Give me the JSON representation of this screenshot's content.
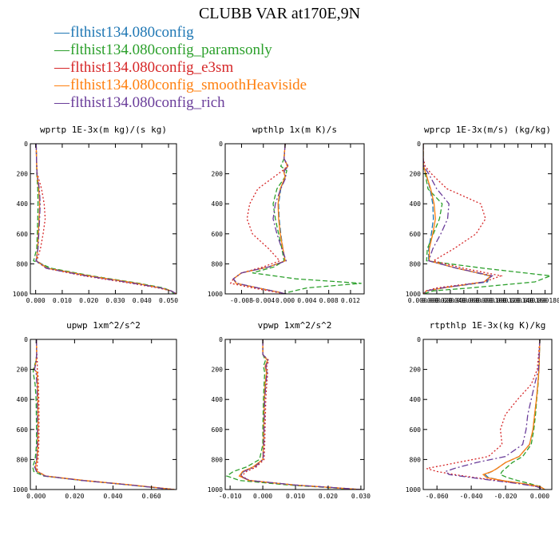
{
  "title": "CLUBB VAR at170E,9N",
  "series_colors": [
    "#1f77b4",
    "#2ca02c",
    "#d62728",
    "#ff7f0e",
    "#6a3d9a"
  ],
  "legend": [
    {
      "name": "flthist134.080config",
      "color": "#1f77b4"
    },
    {
      "name": "flthist134.080config_paramsonly",
      "color": "#2ca02c"
    },
    {
      "name": "flthist134.080config_e3sm",
      "color": "#d62728"
    },
    {
      "name": "flthist134.080config_smoothHeaviside",
      "color": "#ff7f0e"
    },
    {
      "name": "flthist134.080config_rich",
      "color": "#6a3d9a"
    }
  ],
  "chart_data": [
    {
      "type": "line",
      "title": "wprtp  1E-3x(m kg)/(s kg)",
      "xlim": [
        -0.002,
        0.053
      ],
      "ylim": [
        0,
        1000
      ],
      "yinverted": true,
      "xticks": [
        0.0,
        0.01,
        0.02,
        0.03,
        0.04,
        0.05
      ],
      "xtick_labels": [
        "0.000",
        "0.010",
        "0.020",
        "0.030",
        "0.040",
        "0.050"
      ],
      "yticks": [
        0,
        200,
        400,
        600,
        800,
        1000
      ],
      "ytick_labels": [
        "0",
        "200",
        "400",
        "600",
        "800",
        "1000"
      ],
      "y": [
        0,
        100,
        200,
        300,
        400,
        500,
        600,
        700,
        780,
        830,
        880,
        930,
        960,
        980,
        1000
      ],
      "series": [
        {
          "name": "flthist134.080config",
          "x": [
            0.0002,
            0.0003,
            0.0005,
            0.0012,
            0.0015,
            0.0013,
            0.001,
            0.0008,
            0.0003,
            0.005,
            0.02,
            0.038,
            0.047,
            0.051,
            0.053
          ]
        },
        {
          "name": "flthist134.080config_paramsonly",
          "x": [
            0.0002,
            0.0003,
            0.0004,
            0.0008,
            0.0009,
            0.0008,
            0.0006,
            0.0004,
            -0.0008,
            0.006,
            0.021,
            0.039,
            0.048,
            0.051,
            0.052
          ]
        },
        {
          "name": "flthist134.080config_e3sm",
          "x": [
            0.0002,
            0.0003,
            0.0006,
            0.0022,
            0.0032,
            0.0036,
            0.0028,
            0.0018,
            0.0004,
            0.004,
            0.018,
            0.036,
            0.046,
            0.051,
            0.053
          ]
        },
        {
          "name": "flthist134.080config_smoothHeaviside",
          "x": [
            0.0002,
            0.0003,
            0.0005,
            0.0012,
            0.0015,
            0.0013,
            0.001,
            0.0008,
            0.0002,
            0.0045,
            0.02,
            0.038,
            0.047,
            0.051,
            0.053
          ]
        },
        {
          "name": "flthist134.080config_rich",
          "x": [
            0.0002,
            0.0003,
            0.0005,
            0.0014,
            0.0017,
            0.0015,
            0.0012,
            0.0009,
            0.0001,
            0.004,
            0.019,
            0.037,
            0.047,
            0.051,
            0.053
          ]
        }
      ]
    },
    {
      "type": "line",
      "title": "wpthlp  1x(m K)/s",
      "xlim": [
        -0.011,
        0.0145
      ],
      "ylim": [
        0,
        1000
      ],
      "yinverted": true,
      "xticks": [
        -0.008,
        -0.004,
        0.0,
        0.004,
        0.008,
        0.012
      ],
      "xtick_labels": [
        "-0.008",
        "-0.004",
        "0.000",
        "0.004",
        "0.008",
        "0.012"
      ],
      "yticks": [
        0,
        200,
        400,
        600,
        800,
        1000
      ],
      "ytick_labels": [
        "0",
        "200",
        "400",
        "600",
        "800",
        "1000"
      ],
      "y": [
        0,
        100,
        150,
        180,
        220,
        300,
        400,
        500,
        600,
        700,
        780,
        820,
        860,
        900,
        930,
        960,
        990,
        1000
      ],
      "series": [
        {
          "name": "flthist134.080config",
          "x": [
            0.0,
            -0.0002,
            0.0005,
            -0.0003,
            0.0,
            -0.0008,
            -0.0012,
            -0.0011,
            -0.0008,
            -0.0004,
            0.0,
            -0.003,
            -0.008,
            -0.0095,
            -0.009,
            -0.005,
            -0.001,
            0.0
          ]
        },
        {
          "name": "flthist134.080config_paramsonly",
          "x": [
            0.0,
            -0.0002,
            -0.0008,
            0.0003,
            0.0,
            -0.0015,
            -0.0022,
            -0.0018,
            -0.0012,
            -0.0006,
            -0.0002,
            -0.002,
            -0.006,
            0.002,
            0.014,
            0.004,
            0.0005,
            0.0
          ]
        },
        {
          "name": "flthist134.080config_e3sm",
          "x": [
            0.0,
            -0.0002,
            0.0004,
            -0.0005,
            -0.002,
            -0.005,
            -0.0065,
            -0.007,
            -0.006,
            -0.003,
            -0.001,
            -0.004,
            -0.008,
            -0.0095,
            -0.01,
            -0.006,
            -0.0015,
            0.0
          ]
        },
        {
          "name": "flthist134.080config_smoothHeaviside",
          "x": [
            0.0,
            -0.0002,
            0.0005,
            -0.0003,
            0.0,
            -0.0009,
            -0.0013,
            -0.0012,
            -0.0009,
            -0.0004,
            0.0,
            -0.003,
            -0.008,
            -0.0095,
            -0.009,
            -0.005,
            -0.001,
            0.0
          ]
        },
        {
          "name": "flthist134.080config_rich",
          "x": [
            0.0,
            -0.0002,
            0.0006,
            -0.0002,
            0.0002,
            -0.0008,
            -0.0018,
            -0.0022,
            -0.0015,
            -0.0006,
            0.0002,
            -0.003,
            -0.008,
            -0.0095,
            -0.0088,
            -0.005,
            -0.001,
            0.0
          ]
        }
      ]
    },
    {
      "type": "line",
      "title": "wprcp  1E-3x(m/s) (kg/kg)",
      "xlim": [
        0.0,
        0.00019
      ],
      "ylim": [
        0,
        1000
      ],
      "yinverted": true,
      "xticks": [
        0.0,
        2e-05,
        4e-05,
        6e-05,
        8e-05,
        0.0001,
        0.00012,
        0.00014,
        0.00016,
        0.00018
      ],
      "xtick_labels": [
        "0.000000",
        "0.000020",
        "0.000040",
        "0.000060",
        "0.000080",
        "0.000100",
        "0.000120",
        "0.000140",
        "0.000160",
        "0.000180"
      ],
      "yticks": [
        0,
        200,
        400,
        600,
        800,
        1000
      ],
      "ytick_labels": [
        "0",
        "200",
        "400",
        "600",
        "800",
        "1000"
      ],
      "y": [
        0,
        100,
        150,
        200,
        300,
        400,
        500,
        600,
        700,
        780,
        830,
        880,
        920,
        960,
        980,
        1000
      ],
      "series": [
        {
          "name": "flthist134.080config",
          "x": [
            0.0,
            0.0,
            5e-07,
            4e-06,
            1e-05,
            1.4e-05,
            1.5e-05,
            1.2e-05,
            8e-06,
            8e-06,
            5e-05,
            9.8e-05,
            9.5e-05,
            3e-05,
            5e-06,
            0.0
          ]
        },
        {
          "name": "flthist134.080config_paramsonly",
          "x": [
            0.0,
            0.0,
            5e-07,
            3e-06,
            7e-06,
            2.8e-05,
            2.4e-05,
            1.5e-05,
            6e-06,
            5e-06,
            9e-05,
            0.000188,
            0.000165,
            7e-05,
            1.5e-05,
            0.0
          ]
        },
        {
          "name": "flthist134.080config_e3sm",
          "x": [
            0.0,
            0.0,
            3e-06,
            1.2e-05,
            3.5e-05,
            8.5e-05,
            9.2e-05,
            7.8e-05,
            4.5e-05,
            1.5e-05,
            6e-05,
            0.000115,
            9e-05,
            2e-05,
            4e-06,
            0.0
          ]
        },
        {
          "name": "flthist134.080config_smoothHeaviside",
          "x": [
            0.0,
            0.0,
            5e-07,
            4e-06,
            1.1e-05,
            1.6e-05,
            1.8e-05,
            1.4e-05,
            9e-06,
            9e-06,
            5e-05,
            0.0001,
            9e-05,
            3e-05,
            5e-06,
            0.0
          ]
        },
        {
          "name": "flthist134.080config_rich",
          "x": [
            0.0,
            0.0,
            1e-06,
            8e-06,
            2e-05,
            3.8e-05,
            3.6e-05,
            2.6e-05,
            1.4e-05,
            8e-06,
            5e-05,
            0.000102,
            9e-05,
            2.8e-05,
            5e-06,
            0.0
          ]
        }
      ]
    },
    {
      "type": "line",
      "title": "upwp  1xm^2/s^2",
      "xlim": [
        -0.003,
        0.073
      ],
      "ylim": [
        0,
        1000
      ],
      "yinverted": true,
      "xticks": [
        0.0,
        0.02,
        0.04,
        0.06
      ],
      "xtick_labels": [
        "0.000",
        "0.020",
        "0.040",
        "0.060"
      ],
      "yticks": [
        0,
        200,
        400,
        600,
        800,
        1000
      ],
      "ytick_labels": [
        "0",
        "200",
        "400",
        "600",
        "800",
        "1000"
      ],
      "y": [
        0,
        100,
        150,
        200,
        220,
        300,
        400,
        500,
        600,
        700,
        800,
        850,
        880,
        910,
        940,
        970,
        1000
      ],
      "series": [
        {
          "name": "flthist134.080config",
          "x": [
            0.0002,
            0.0003,
            0.0,
            -0.001,
            0.0005,
            0.0006,
            0.0008,
            0.0009,
            0.0009,
            0.0008,
            0.0004,
            -0.0005,
            0.0006,
            0.005,
            0.025,
            0.05,
            0.072
          ]
        },
        {
          "name": "flthist134.080config_paramsonly",
          "x": [
            0.0002,
            0.0003,
            -0.0002,
            -0.0015,
            -0.0015,
            -0.0005,
            0.0,
            0.0001,
            0.0002,
            0.0002,
            -0.0005,
            -0.0018,
            -0.0012,
            0.004,
            0.024,
            0.049,
            0.071
          ]
        },
        {
          "name": "flthist134.080config_e3sm",
          "x": [
            0.0002,
            0.0004,
            0.0006,
            0.0006,
            0.0009,
            0.0012,
            0.0014,
            0.0015,
            0.0015,
            0.0014,
            0.001,
            0.0004,
            0.0008,
            0.005,
            0.025,
            0.05,
            0.072
          ]
        },
        {
          "name": "flthist134.080config_smoothHeaviside",
          "x": [
            0.0002,
            0.0003,
            0.0,
            -0.001,
            0.0005,
            0.0007,
            0.0009,
            0.001,
            0.001,
            0.0009,
            0.0005,
            -0.0004,
            0.0006,
            0.005,
            0.025,
            0.05,
            0.072
          ]
        },
        {
          "name": "flthist134.080config_rich",
          "x": [
            0.0002,
            0.0003,
            0.0,
            -0.0008,
            0.0,
            0.0004,
            0.0006,
            0.0007,
            0.0007,
            0.0006,
            0.0002,
            -0.0008,
            0.0002,
            0.0045,
            0.024,
            0.049,
            0.071
          ]
        }
      ]
    },
    {
      "type": "line",
      "title": "vpwp  1xm^2/s^2",
      "xlim": [
        -0.0115,
        0.031
      ],
      "ylim": [
        0,
        1000
      ],
      "yinverted": true,
      "xticks": [
        -0.01,
        0.0,
        0.01,
        0.02,
        0.03
      ],
      "xtick_labels": [
        "-0.010",
        "0.000",
        "0.010",
        "0.020",
        "0.030"
      ],
      "yticks": [
        0,
        200,
        400,
        600,
        800,
        1000
      ],
      "ytick_labels": [
        "0",
        "200",
        "400",
        "600",
        "800",
        "1000"
      ],
      "y": [
        0,
        100,
        140,
        180,
        220,
        300,
        400,
        500,
        600,
        700,
        800,
        850,
        880,
        910,
        940,
        970,
        1000
      ],
      "series": [
        {
          "name": "flthist134.080config",
          "x": [
            0.0,
            0.0,
            0.0015,
            0.0008,
            0.0012,
            0.0008,
            0.0005,
            0.0004,
            0.0003,
            0.0002,
            0.0,
            -0.003,
            -0.006,
            -0.007,
            -0.004,
            0.01,
            0.03
          ]
        },
        {
          "name": "flthist134.080config_paramsonly",
          "x": [
            0.0,
            0.0,
            0.0008,
            0.0002,
            0.0006,
            0.0004,
            0.0002,
            0.0001,
            0.0,
            0.0,
            -0.001,
            -0.005,
            -0.009,
            -0.011,
            -0.007,
            0.008,
            0.029
          ]
        },
        {
          "name": "flthist134.080config_e3sm",
          "x": [
            0.0,
            0.0,
            0.0018,
            0.0012,
            0.0015,
            0.0012,
            0.0009,
            0.0008,
            0.0007,
            0.0006,
            0.0004,
            -0.002,
            -0.005,
            -0.0065,
            -0.004,
            0.01,
            0.03
          ]
        },
        {
          "name": "flthist134.080config_smoothHeaviside",
          "x": [
            0.0,
            0.0,
            0.0014,
            0.0007,
            0.0011,
            0.0007,
            0.0005,
            0.0004,
            0.0003,
            0.0002,
            0.0,
            -0.003,
            -0.0062,
            -0.0072,
            -0.0042,
            0.0098,
            0.03
          ]
        },
        {
          "name": "flthist134.080config_rich",
          "x": [
            0.0,
            0.0,
            0.0016,
            0.0009,
            0.0013,
            0.0009,
            0.0006,
            0.0005,
            0.0004,
            0.0003,
            0.0001,
            -0.0025,
            -0.0058,
            -0.0068,
            -0.004,
            0.01,
            0.03
          ]
        }
      ]
    },
    {
      "type": "line",
      "title": "rtpthlp  1E-3x(kg K)/kg",
      "xlim": [
        -0.068,
        0.007
      ],
      "ylim": [
        0,
        1000
      ],
      "yinverted": true,
      "xticks": [
        -0.06,
        -0.04,
        -0.02,
        0.0
      ],
      "xtick_labels": [
        "-0.060",
        "-0.040",
        "-0.020",
        "0.000"
      ],
      "yticks": [
        0,
        200,
        400,
        600,
        800,
        1000
      ],
      "ytick_labels": [
        "0",
        "200",
        "400",
        "600",
        "800",
        "1000"
      ],
      "y": [
        0,
        200,
        300,
        400,
        500,
        600,
        700,
        780,
        820,
        860,
        880,
        900,
        920,
        940,
        960,
        980,
        1000
      ],
      "series": [
        {
          "name": "flthist134.080config",
          "x": [
            0.0,
            -0.0005,
            -0.0012,
            -0.002,
            -0.003,
            -0.004,
            -0.006,
            -0.012,
            -0.02,
            -0.025,
            -0.028,
            -0.032,
            -0.03,
            -0.022,
            -0.01,
            0.0,
            0.003
          ]
        },
        {
          "name": "flthist134.080config_paramsonly",
          "x": [
            0.0,
            -0.0005,
            -0.001,
            -0.0018,
            -0.0025,
            -0.0035,
            -0.005,
            -0.01,
            -0.016,
            -0.02,
            -0.022,
            -0.023,
            -0.019,
            -0.013,
            -0.006,
            0.0,
            0.003
          ]
        },
        {
          "name": "flthist134.080config_e3sm",
          "x": [
            0.0,
            -0.0015,
            -0.005,
            -0.013,
            -0.02,
            -0.023,
            -0.022,
            -0.03,
            -0.048,
            -0.066,
            -0.06,
            -0.05,
            -0.038,
            -0.025,
            -0.012,
            -0.002,
            0.002
          ]
        },
        {
          "name": "flthist134.080config_smoothHeaviside",
          "x": [
            0.0,
            -0.0005,
            -0.0012,
            -0.002,
            -0.003,
            -0.004,
            -0.006,
            -0.012,
            -0.02,
            -0.025,
            -0.028,
            -0.033,
            -0.031,
            -0.022,
            -0.01,
            0.0,
            0.003
          ]
        },
        {
          "name": "flthist134.080config_rich",
          "x": [
            0.0,
            -0.0008,
            -0.003,
            -0.005,
            -0.007,
            -0.008,
            -0.01,
            -0.02,
            -0.037,
            -0.05,
            -0.055,
            -0.053,
            -0.04,
            -0.027,
            -0.013,
            -0.002,
            0.002
          ]
        }
      ]
    }
  ]
}
